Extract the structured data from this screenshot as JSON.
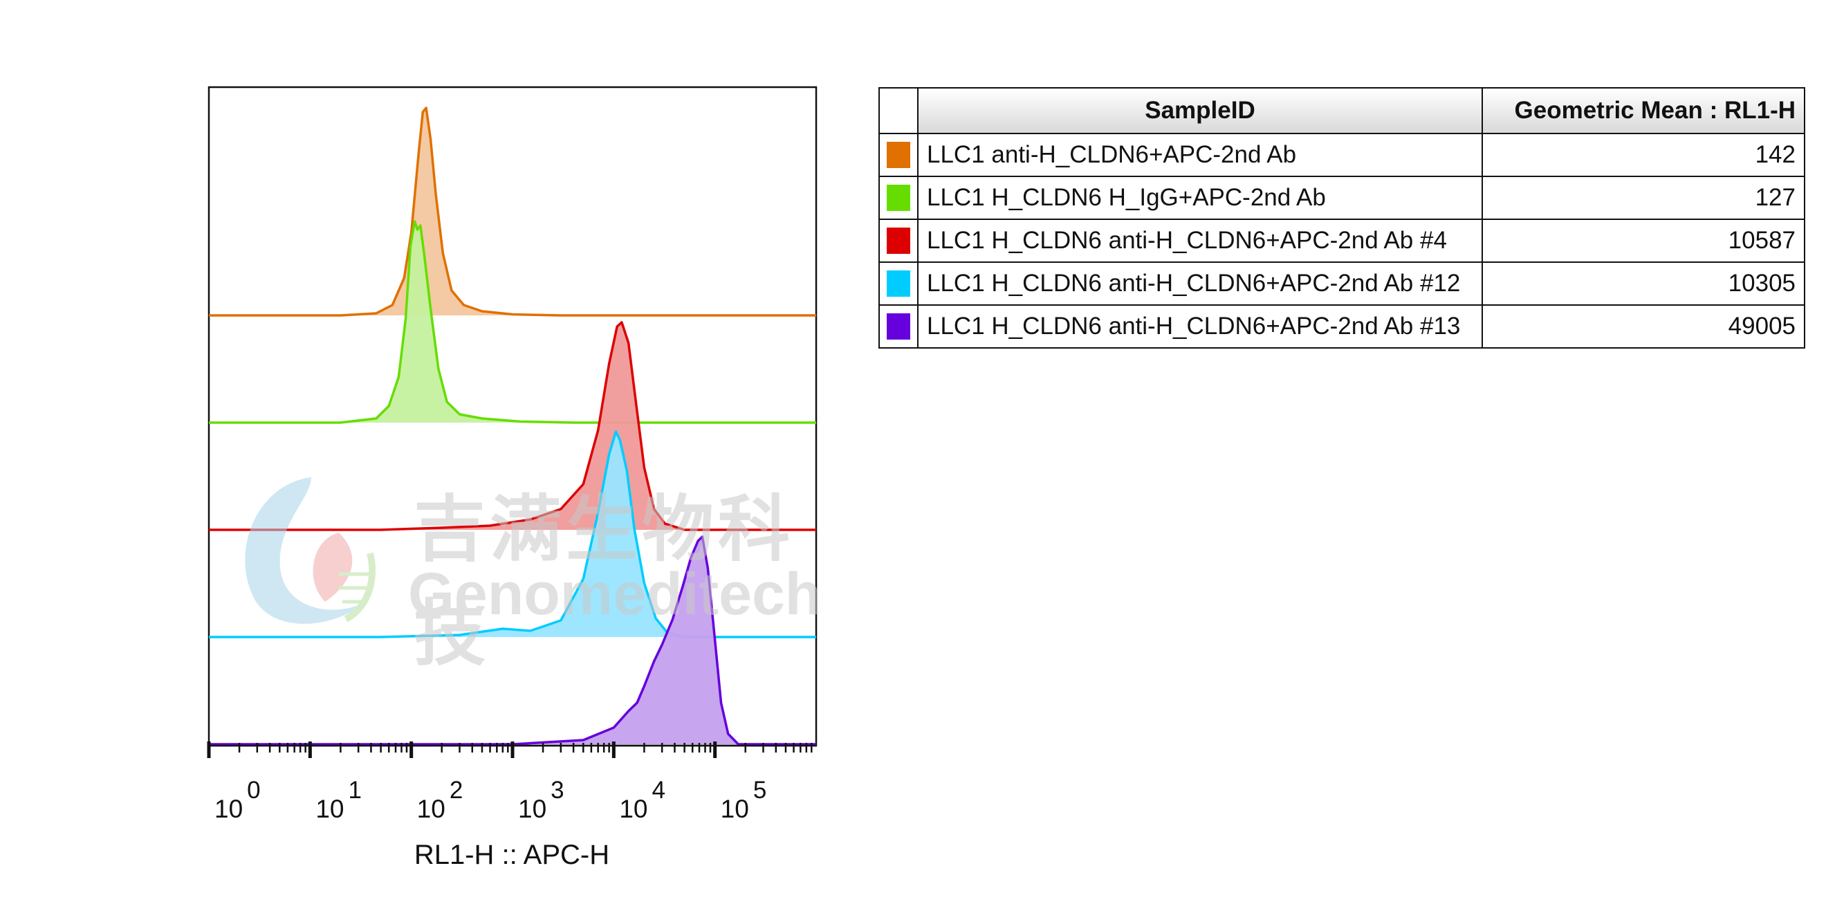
{
  "chart_data": {
    "type": "area",
    "xlabel": "RL1-H :: APC-H",
    "x_scale": "log",
    "xlim": [
      1,
      1000000
    ],
    "x_ticks": [
      {
        "base": "10",
        "exp": "0"
      },
      {
        "base": "10",
        "exp": "1"
      },
      {
        "base": "10",
        "exp": "2"
      },
      {
        "base": "10",
        "exp": "3"
      },
      {
        "base": "10",
        "exp": "4"
      },
      {
        "base": "10",
        "exp": "5"
      }
    ],
    "series": [
      {
        "name": "LLC1 anti-H_CLDN6+APC-2nd Ab",
        "geomean": "142",
        "color": "#e07000",
        "fill": "#f2c79e",
        "points": [
          [
            20,
            0
          ],
          [
            45,
            0.01
          ],
          [
            65,
            0.05
          ],
          [
            85,
            0.18
          ],
          [
            100,
            0.4
          ],
          [
            118,
            0.78
          ],
          [
            130,
            0.98
          ],
          [
            140,
            1.0
          ],
          [
            155,
            0.85
          ],
          [
            175,
            0.58
          ],
          [
            205,
            0.3
          ],
          [
            250,
            0.12
          ],
          [
            330,
            0.05
          ],
          [
            500,
            0.02
          ],
          [
            1000,
            0.005
          ],
          [
            3000,
            0
          ]
        ]
      },
      {
        "name": "LLC1 H_CLDN6 H_IgG+APC-2nd Ab",
        "geomean": "127",
        "color": "#66dd00",
        "fill": "#c4f09e",
        "points": [
          [
            20,
            0
          ],
          [
            45,
            0.02
          ],
          [
            60,
            0.08
          ],
          [
            75,
            0.22
          ],
          [
            88,
            0.5
          ],
          [
            98,
            0.85
          ],
          [
            108,
            0.97
          ],
          [
            115,
            0.93
          ],
          [
            123,
            0.95
          ],
          [
            135,
            0.8
          ],
          [
            155,
            0.55
          ],
          [
            185,
            0.26
          ],
          [
            225,
            0.1
          ],
          [
            300,
            0.04
          ],
          [
            500,
            0.02
          ],
          [
            1200,
            0.005
          ],
          [
            4000,
            0
          ]
        ]
      },
      {
        "name": "LLC1 H_CLDN6 anti-H_CLDN6+APC-2nd Ab #4",
        "geomean": "10587",
        "color": "#dd0000",
        "fill": "#f09999",
        "points": [
          [
            50,
            0
          ],
          [
            200,
            0.01
          ],
          [
            600,
            0.02
          ],
          [
            1500,
            0.05
          ],
          [
            3000,
            0.1
          ],
          [
            5000,
            0.22
          ],
          [
            7000,
            0.48
          ],
          [
            9000,
            0.8
          ],
          [
            10800,
            0.98
          ],
          [
            12000,
            1.0
          ],
          [
            14000,
            0.9
          ],
          [
            16500,
            0.62
          ],
          [
            20000,
            0.3
          ],
          [
            25000,
            0.1
          ],
          [
            32000,
            0.03
          ],
          [
            50000,
            0
          ]
        ]
      },
      {
        "name": "LLC1 H_CLDN6 anti-H_CLDN6+APC-2nd Ab #12",
        "geomean": "10305",
        "color": "#00ccff",
        "fill": "#99e5ff",
        "points": [
          [
            50,
            0
          ],
          [
            300,
            0.01
          ],
          [
            800,
            0.04
          ],
          [
            1500,
            0.03
          ],
          [
            3000,
            0.08
          ],
          [
            5000,
            0.28
          ],
          [
            7000,
            0.6
          ],
          [
            9000,
            0.88
          ],
          [
            10500,
            0.99
          ],
          [
            11500,
            0.95
          ],
          [
            13500,
            0.8
          ],
          [
            16000,
            0.52
          ],
          [
            20000,
            0.26
          ],
          [
            26000,
            0.09
          ],
          [
            34000,
            0.02
          ],
          [
            50000,
            0
          ]
        ]
      },
      {
        "name": "LLC1 H_CLDN6 anti-H_CLDN6+APC-2nd Ab #13",
        "geomean": "49005",
        "color": "#6600dd",
        "fill": "#c4a0ee",
        "points": [
          [
            1000,
            0
          ],
          [
            5000,
            0.02
          ],
          [
            10000,
            0.08
          ],
          [
            14000,
            0.16
          ],
          [
            17000,
            0.2
          ],
          [
            20000,
            0.28
          ],
          [
            25000,
            0.4
          ],
          [
            30000,
            0.48
          ],
          [
            38000,
            0.6
          ],
          [
            48000,
            0.76
          ],
          [
            58000,
            0.9
          ],
          [
            68000,
            0.98
          ],
          [
            75000,
            1.0
          ],
          [
            85000,
            0.85
          ],
          [
            100000,
            0.5
          ],
          [
            115000,
            0.2
          ],
          [
            135000,
            0.05
          ],
          [
            170000,
            0
          ]
        ]
      }
    ]
  },
  "legend_table": {
    "header_sample": "SampleID",
    "header_value": "Geometric Mean : RL1-H"
  },
  "watermark": {
    "chinese": "吉满生物科技",
    "english": "Genomeditech"
  }
}
